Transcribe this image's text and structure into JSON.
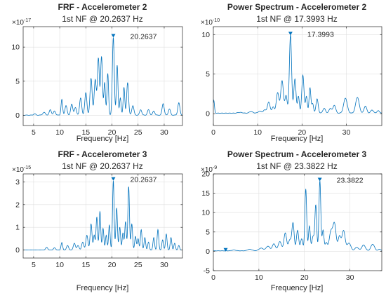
{
  "figure": {
    "panels": [
      {
        "title": "FRF - Accelerometer 2",
        "subtitle": "1st NF @ 20.2637 Hz",
        "xlabel": "Frequency [Hz]",
        "exponent_base": "×10",
        "exponent_power": "-17"
      },
      {
        "title": "Power Spectrum - Accelerometer 2",
        "subtitle": "1st NF @ 17.3993 Hz",
        "xlabel": "Frequency [Hz]",
        "exponent_base": "×10",
        "exponent_power": "-10"
      },
      {
        "title": "FRF - Accelerometer 3",
        "subtitle": "1st NF @ 20.2637 Hz",
        "xlabel": "Frequency [Hz]",
        "exponent_base": "×10",
        "exponent_power": "-15"
      },
      {
        "title": "Power Spectrum - Accelerometer 3",
        "subtitle": "1st NF @ 23.3822 Hz",
        "xlabel": "Frequency [Hz]",
        "exponent_base": "×10",
        "exponent_power": "-9"
      }
    ]
  },
  "chart_data": [
    {
      "type": "line",
      "title": "FRF - Accelerometer 2",
      "subtitle": "1st NF @ 20.2637 Hz",
      "xlabel": "Frequency [Hz]",
      "ylabel": "",
      "xlim": [
        3,
        33.5
      ],
      "ylim": [
        -1.5,
        13
      ],
      "xticks": [
        5,
        10,
        15,
        20,
        25,
        30
      ],
      "yticks": [
        0,
        5,
        10
      ],
      "y_exponent": "-17",
      "grid": true,
      "line_color": "#0072BD",
      "baseline": [
        0,
        0.3
      ],
      "peaks": [
        [
          5.2,
          0.2,
          0.2
        ],
        [
          7.0,
          0.4,
          0.25
        ],
        [
          8.2,
          0.8,
          0.2
        ],
        [
          9.0,
          0.6,
          0.2
        ],
        [
          10.4,
          2.3,
          0.15
        ],
        [
          11.2,
          1.4,
          0.2
        ],
        [
          12.3,
          1.6,
          0.2
        ],
        [
          13.0,
          1.1,
          0.2
        ],
        [
          14.0,
          2.5,
          0.2
        ],
        [
          15.0,
          3.3,
          0.2
        ],
        [
          16.0,
          5.4,
          0.2
        ],
        [
          16.8,
          5.2,
          0.2
        ],
        [
          17.4,
          8.3,
          0.18
        ],
        [
          18.0,
          8.6,
          0.18
        ],
        [
          18.6,
          4.8,
          0.15
        ],
        [
          19.2,
          6.1,
          0.15
        ],
        [
          20.26,
          11.4,
          0.18
        ],
        [
          21.0,
          7.3,
          0.15
        ],
        [
          21.6,
          2.5,
          0.15
        ],
        [
          22.3,
          4.1,
          0.15
        ],
        [
          23.0,
          4.8,
          0.18
        ],
        [
          24.0,
          1.4,
          0.2
        ],
        [
          25.5,
          0.8,
          0.2
        ],
        [
          27.0,
          0.8,
          0.2
        ],
        [
          28.0,
          0.6,
          0.2
        ],
        [
          29.8,
          1.7,
          0.2
        ],
        [
          31.0,
          0.9,
          0.2
        ],
        [
          32.8,
          1.8,
          0.2
        ]
      ],
      "marker": {
        "x": 20.2637,
        "y": 11.4,
        "label": "20.2637"
      }
    },
    {
      "type": "line",
      "title": "Power Spectrum - Accelerometer 2",
      "subtitle": "1st NF @ 17.3993 Hz",
      "xlabel": "Frequency [Hz]",
      "ylabel": "",
      "xlim": [
        0,
        38
      ],
      "ylim": [
        -1.5,
        11
      ],
      "xticks": [
        0,
        10,
        20,
        30
      ],
      "yticks": [
        0,
        5,
        10
      ],
      "y_exponent": "-10",
      "grid": true,
      "line_color": "#0072BD",
      "baseline": [
        0.05,
        0.2
      ],
      "peaks": [
        [
          0.1,
          1.6,
          0.15
        ],
        [
          6.0,
          0.1,
          0.5
        ],
        [
          8.5,
          0.2,
          0.4
        ],
        [
          10.5,
          0.25,
          0.4
        ],
        [
          11.6,
          0.4,
          0.3
        ],
        [
          12.5,
          1.4,
          0.3
        ],
        [
          13.5,
          0.8,
          0.25
        ],
        [
          14.5,
          2.6,
          0.3
        ],
        [
          15.5,
          4.1,
          0.3
        ],
        [
          16.4,
          2.2,
          0.25
        ],
        [
          17.4,
          9.9,
          0.25
        ],
        [
          18.4,
          4.3,
          0.25
        ],
        [
          19.2,
          2.1,
          0.2
        ],
        [
          20.2,
          4.8,
          0.25
        ],
        [
          21.0,
          2.1,
          0.2
        ],
        [
          21.8,
          3.2,
          0.2
        ],
        [
          22.4,
          1.2,
          0.2
        ],
        [
          23.4,
          1.8,
          0.25
        ],
        [
          25.0,
          0.6,
          0.3
        ],
        [
          26.4,
          0.6,
          0.3
        ],
        [
          27.3,
          1.0,
          0.3
        ],
        [
          29.8,
          1.9,
          0.4
        ],
        [
          32.5,
          2.0,
          0.4
        ],
        [
          34.3,
          0.9,
          0.3
        ],
        [
          35.8,
          0.4,
          0.3
        ],
        [
          37.2,
          0.3,
          0.3
        ]
      ],
      "marker": {
        "x": 17.3993,
        "y": 9.9,
        "label": "17.3993"
      }
    },
    {
      "type": "line",
      "title": "FRF - Accelerometer 3",
      "subtitle": "1st NF @ 20.2637 Hz",
      "xlabel": "Frequency [Hz]",
      "ylabel": "",
      "xlim": [
        3,
        33.5
      ],
      "ylim": [
        -0.35,
        3.35
      ],
      "xticks": [
        5,
        10,
        15,
        20,
        25,
        30
      ],
      "yticks": [
        0,
        1,
        2,
        3
      ],
      "y_exponent": "-15",
      "grid": true,
      "line_color": "#0072BD",
      "baseline": [
        0,
        0.02
      ],
      "peaks": [
        [
          7.5,
          0.12,
          0.2
        ],
        [
          9.0,
          0.1,
          0.2
        ],
        [
          10.4,
          0.33,
          0.15
        ],
        [
          11.5,
          0.2,
          0.2
        ],
        [
          12.8,
          0.3,
          0.2
        ],
        [
          13.5,
          0.2,
          0.2
        ],
        [
          14.4,
          0.35,
          0.2
        ],
        [
          15.2,
          0.65,
          0.2
        ],
        [
          16.0,
          1.15,
          0.18
        ],
        [
          16.6,
          0.65,
          0.15
        ],
        [
          17.1,
          1.45,
          0.15
        ],
        [
          17.7,
          1.7,
          0.15
        ],
        [
          18.3,
          0.95,
          0.15
        ],
        [
          18.9,
          0.65,
          0.15
        ],
        [
          19.5,
          1.1,
          0.15
        ],
        [
          20.26,
          3.05,
          0.15
        ],
        [
          20.9,
          1.85,
          0.15
        ],
        [
          21.5,
          1.0,
          0.15
        ],
        [
          22.1,
          0.75,
          0.15
        ],
        [
          22.6,
          1.25,
          0.15
        ],
        [
          23.2,
          2.8,
          0.15
        ],
        [
          23.8,
          1.15,
          0.15
        ],
        [
          24.5,
          0.6,
          0.15
        ],
        [
          25.0,
          0.5,
          0.15
        ],
        [
          25.6,
          0.9,
          0.15
        ],
        [
          26.3,
          0.55,
          0.15
        ],
        [
          27.0,
          0.35,
          0.15
        ],
        [
          28.0,
          0.55,
          0.15
        ],
        [
          28.8,
          0.9,
          0.15
        ],
        [
          29.7,
          0.45,
          0.15
        ],
        [
          30.4,
          0.7,
          0.15
        ],
        [
          31.3,
          0.55,
          0.15
        ],
        [
          32.0,
          0.3,
          0.15
        ],
        [
          32.8,
          0.2,
          0.15
        ]
      ],
      "marker": {
        "x": 20.2637,
        "y": 3.05,
        "label": "20.2637"
      }
    },
    {
      "type": "line",
      "title": "Power Spectrum - Accelerometer 3",
      "subtitle": "1st NF @ 23.3822 Hz",
      "xlabel": "Frequency [Hz]",
      "ylabel": "",
      "xlim": [
        0,
        37
      ],
      "ylim": [
        -5,
        20
      ],
      "xticks": [
        0,
        10,
        20,
        30
      ],
      "yticks": [
        -5,
        0,
        5,
        10,
        15,
        20
      ],
      "y_exponent": "-9",
      "grid": true,
      "line_color": "#0072BD",
      "baseline": [
        0.1,
        0.3
      ],
      "peaks": [
        [
          4.5,
          0.2,
          0.5
        ],
        [
          8.0,
          0.4,
          0.5
        ],
        [
          10.5,
          0.7,
          0.5
        ],
        [
          12.0,
          1.2,
          0.4
        ],
        [
          13.3,
          1.8,
          0.35
        ],
        [
          14.6,
          2.4,
          0.35
        ],
        [
          15.8,
          4.6,
          0.3
        ],
        [
          16.8,
          2.8,
          0.3
        ],
        [
          17.5,
          7.1,
          0.25
        ],
        [
          18.5,
          5.3,
          0.25
        ],
        [
          19.4,
          3.1,
          0.25
        ],
        [
          20.3,
          16.0,
          0.2
        ],
        [
          21.1,
          6.4,
          0.2
        ],
        [
          21.9,
          3.7,
          0.25
        ],
        [
          22.5,
          11.7,
          0.2
        ],
        [
          23.4,
          18.1,
          0.2
        ],
        [
          24.1,
          5.3,
          0.2
        ],
        [
          24.8,
          2.1,
          0.25
        ],
        [
          25.8,
          4.8,
          0.35
        ],
        [
          26.6,
          7.0,
          0.35
        ],
        [
          27.7,
          3.7,
          0.3
        ],
        [
          28.6,
          5.2,
          0.35
        ],
        [
          29.8,
          2.0,
          0.4
        ],
        [
          31.5,
          0.9,
          0.4
        ],
        [
          33.0,
          1.5,
          0.4
        ],
        [
          35.0,
          1.7,
          0.4
        ],
        [
          36.5,
          0.4,
          0.3
        ]
      ],
      "marker": {
        "x": 23.3822,
        "y": 18.1,
        "label": "23.3822"
      },
      "extra_marker": {
        "x": 2.7,
        "y": 0.3
      }
    }
  ]
}
